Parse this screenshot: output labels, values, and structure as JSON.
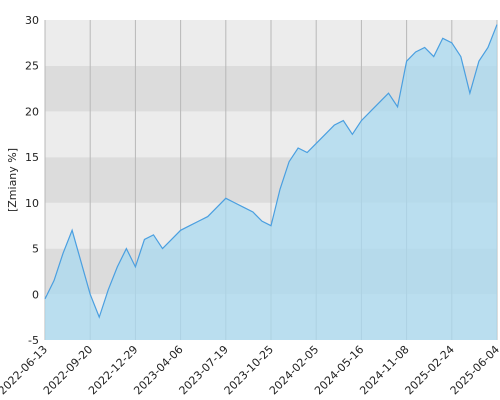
{
  "chart_data": {
    "type": "area",
    "y_label": "[Zmiany %]",
    "x": [
      "2022-06-13",
      "2022-07-03",
      "2022-07-23",
      "2022-08-12",
      "2022-09-01",
      "2022-09-20",
      "2022-10-10",
      "2022-10-30",
      "2022-11-19",
      "2022-12-09",
      "2022-12-29",
      "2023-01-18",
      "2023-02-07",
      "2023-02-27",
      "2023-03-18",
      "2023-04-06",
      "2023-04-27",
      "2023-05-18",
      "2023-06-08",
      "2023-06-28",
      "2023-07-19",
      "2023-08-08",
      "2023-08-28",
      "2023-09-17",
      "2023-10-06",
      "2023-10-25",
      "2023-11-15",
      "2023-12-05",
      "2023-12-26",
      "2024-01-15",
      "2024-02-05",
      "2024-02-25",
      "2024-03-16",
      "2024-04-05",
      "2024-04-26",
      "2024-05-16",
      "2024-06-20",
      "2024-07-25",
      "2024-08-29",
      "2024-10-03",
      "2024-11-08",
      "2024-11-30",
      "2024-12-21",
      "2025-01-12",
      "2025-02-02",
      "2025-02-24",
      "2025-03-16",
      "2025-04-05",
      "2025-04-25",
      "2025-05-15",
      "2025-06-04"
    ],
    "series": [
      {
        "name": "Zmiany",
        "color": "#4a9fe0",
        "fill": "#a9d9f0",
        "values": [
          -0.5,
          1.5,
          4.5,
          7,
          3.5,
          0,
          -2.5,
          0.5,
          3,
          5,
          3,
          6,
          6.5,
          5,
          6,
          7,
          7.5,
          8,
          8.5,
          9.5,
          10.5,
          10,
          9.5,
          9,
          8,
          7.5,
          11.5,
          14.5,
          16,
          15.5,
          16.5,
          17.5,
          18.5,
          19,
          17.5,
          19,
          20,
          21,
          22,
          20.5,
          25.5,
          26.5,
          27,
          26,
          28,
          27.5,
          26,
          22,
          25.5,
          27,
          29.5
        ]
      }
    ],
    "xticks": [
      "2022-06-13",
      "2022-09-20",
      "2022-12-29",
      "2023-04-06",
      "2023-07-19",
      "2023-10-25",
      "2024-02-05",
      "2024-05-16",
      "2024-11-08",
      "2025-02-24",
      "2025-06-04"
    ],
    "ylim": [
      -5,
      30
    ],
    "yticks": [
      -5,
      0,
      5,
      10,
      15,
      20,
      25,
      30
    ],
    "band_colors": [
      "#ececec",
      "#dcdcdc"
    ],
    "grid_color": "#b8b8b8"
  }
}
